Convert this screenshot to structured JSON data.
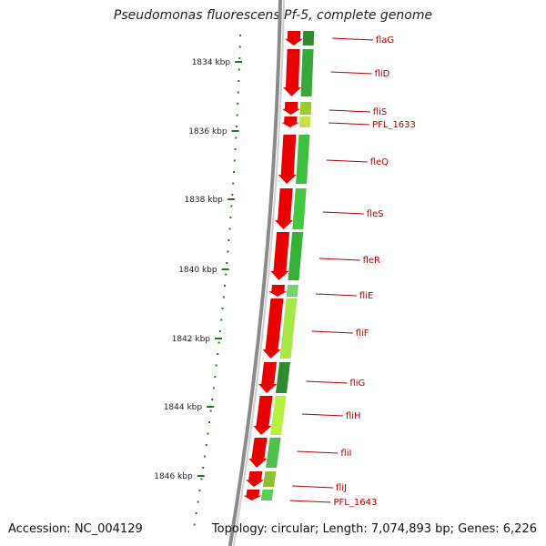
{
  "title": "Pseudomonas fluorescens Pf-5, complete genome",
  "accession": "Accession: NC_004129",
  "topology": "Topology: circular; Length: 7,074,893 bp; Genes: 6,226",
  "colors": {
    "backbone": "#8a8a8a",
    "gene_forward": "#e80000",
    "tick": "#1f7a1f",
    "label": "#b00000"
  },
  "ticks": [
    {
      "label": "1834 kbp",
      "kbp": 1834
    },
    {
      "label": "1836 kbp",
      "kbp": 1836
    },
    {
      "label": "1838 kbp",
      "kbp": 1838
    },
    {
      "label": "1840 kbp",
      "kbp": 1840
    },
    {
      "label": "1842 kbp",
      "kbp": 1842
    },
    {
      "label": "1844 kbp",
      "kbp": 1844
    },
    {
      "label": "1846 kbp",
      "kbp": 1846
    }
  ],
  "genes": [
    {
      "label": "flaG"
    },
    {
      "label": "fliD"
    },
    {
      "label": "fliS"
    },
    {
      "label": "PFL_1633"
    },
    {
      "label": "fleQ"
    },
    {
      "label": "fleS"
    },
    {
      "label": "fleR"
    },
    {
      "label": "fliE"
    },
    {
      "label": "fliF"
    },
    {
      "label": "fliG"
    },
    {
      "label": "fliH"
    },
    {
      "label": "fliI"
    },
    {
      "label": "fliJ"
    },
    {
      "label": "PFL_1643"
    }
  ]
}
